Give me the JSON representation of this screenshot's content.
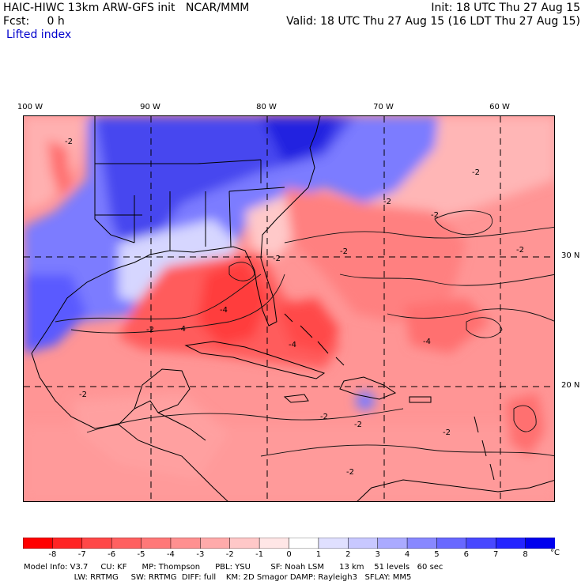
{
  "header": {
    "line1_left": "HAIC-HIWC 13km ARW-GFS init   NCAR/MMM",
    "line1_right": "Init: 18 UTC Thu 27 Aug 15",
    "line2_left": "Fcst:     0 h",
    "line2_right": "Valid: 18 UTC Thu 27 Aug 15 (16 LDT Thu 27 Aug 15)",
    "field": "Lifted index"
  },
  "map": {
    "lon_labels": [
      "100 W",
      "90 W",
      "80 W",
      "70 W",
      "60 W"
    ],
    "lat_labels": [
      "30 N",
      "20 N"
    ],
    "contour_labels": [
      "-2",
      "-2",
      "-4",
      "-2",
      "-4",
      "-2",
      "-4",
      "-2",
      "-2",
      "-2",
      "-2",
      "-2",
      "-2",
      "-2",
      "-2",
      "-2",
      "-4"
    ]
  },
  "colorbar": {
    "labels": [
      "-8",
      "-7",
      "-6",
      "-5",
      "-4",
      "-3",
      "-2",
      "-1",
      "0",
      "1",
      "2",
      "3",
      "4",
      "5",
      "6",
      "7",
      "8"
    ],
    "unit": "°C",
    "colors": [
      "#ff0000",
      "#ff2424",
      "#ff4848",
      "#ff6060",
      "#ff7878",
      "#ff9090",
      "#ffaaaa",
      "#ffc8c8",
      "#ffe6e6",
      "#ffffff",
      "#e0e0ff",
      "#c8c8ff",
      "#aaaaff",
      "#8888ff",
      "#6868ff",
      "#4848ff",
      "#2424ff",
      "#0000ee"
    ]
  },
  "footer": {
    "line1": "Model Info: V3.7     CU: KF      MP: Thompson      PBL: YSU        SF: Noah LSM      13 km    51 levels   60 sec",
    "line2": "                    LW: RRTMG     SW: RRTMG  DIFF: full    KM: 2D Smagor DAMP: Rayleigh3   SFLAY: MM5"
  }
}
